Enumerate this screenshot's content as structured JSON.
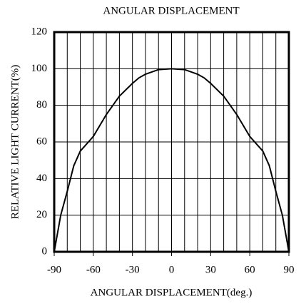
{
  "chart_data": {
    "type": "line",
    "title": "ANGULAR DISPLACEMENT",
    "xlabel": "ANGULAR DISPLACEMENT(deg.)",
    "ylabel": "RELATIVE LIGHT CURRENT(%)",
    "x": [
      -90,
      -85,
      -80,
      -75,
      -70,
      -60,
      -50,
      -40,
      -30,
      -25,
      -20,
      -10,
      0,
      10,
      20,
      25,
      30,
      40,
      50,
      60,
      70,
      75,
      80,
      85,
      90
    ],
    "series": [
      {
        "name": "relative light current",
        "color": "#000000",
        "values": [
          0,
          20,
          33,
          47,
          55,
          63,
          75,
          85,
          92,
          95,
          97,
          99.5,
          100,
          99.5,
          97,
          95,
          92,
          85,
          75,
          63,
          55,
          47,
          33,
          20,
          0
        ]
      }
    ],
    "xlim": [
      -90,
      90
    ],
    "xticks": [
      -90,
      -60,
      -30,
      0,
      30,
      60,
      90
    ],
    "xgrid": [
      -80,
      -70,
      -60,
      -50,
      -40,
      -30,
      -20,
      -10,
      0,
      10,
      20,
      30,
      40,
      50,
      60,
      70,
      80
    ],
    "ylim": [
      0,
      120
    ],
    "yticks": [
      0,
      20,
      40,
      60,
      80,
      100,
      120
    ],
    "grid": true
  }
}
